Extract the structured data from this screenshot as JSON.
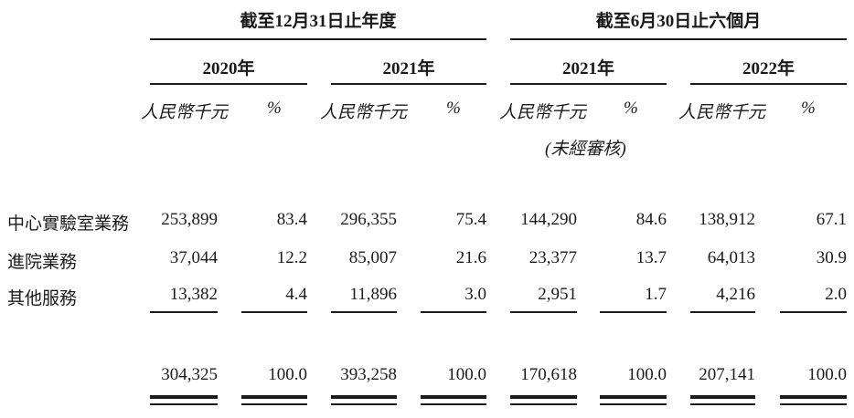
{
  "header": {
    "groups": [
      "截至12月31日止年度",
      "截至6月30日止六個月"
    ],
    "years": [
      "2020年",
      "2021年",
      "2021年",
      "2022年"
    ],
    "unit_amount": "人民幣千元",
    "unit_pct": "%",
    "unaudited_note": "(未經審核)"
  },
  "rows": [
    {
      "label": "中心實驗室業務",
      "values": [
        "253,899",
        "83.4",
        "296,355",
        "75.4",
        "144,290",
        "84.6",
        "138,912",
        "67.1"
      ]
    },
    {
      "label": "進院業務",
      "values": [
        "37,044",
        "12.2",
        "85,007",
        "21.6",
        "23,377",
        "13.7",
        "64,013",
        "30.9"
      ]
    },
    {
      "label": "其他服務",
      "values": [
        "13,382",
        "4.4",
        "11,896",
        "3.0",
        "2,951",
        "1.7",
        "4,216",
        "2.0"
      ]
    }
  ],
  "total": {
    "values": [
      "304,325",
      "100.0",
      "393,258",
      "100.0",
      "170,618",
      "100.0",
      "207,141",
      "100.0"
    ]
  }
}
